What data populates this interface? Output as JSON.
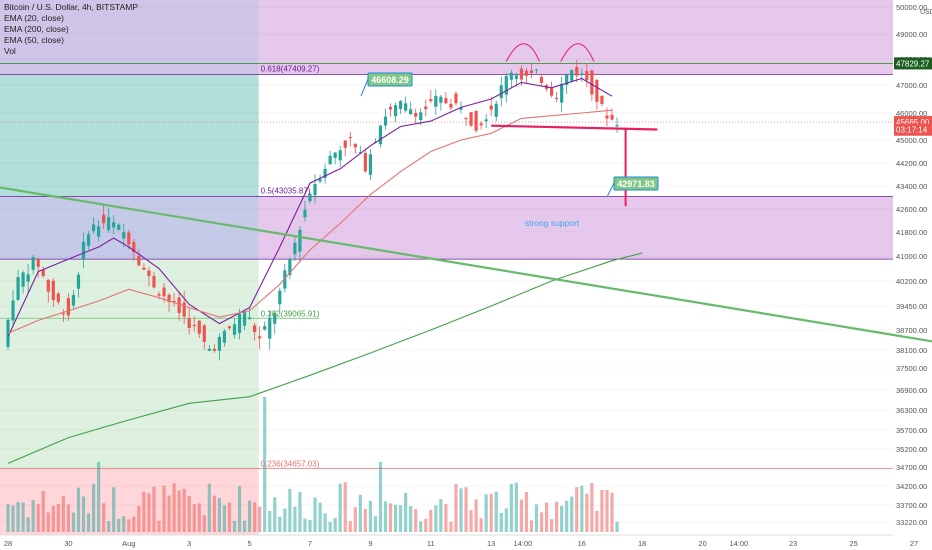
{
  "header": {
    "symbol": "Bitcoin / U.S. Dollar, 4h, BITSTAMP",
    "indicators": [
      "EMA (20, close)",
      "EMA (200, close)",
      "EMA (50, close)",
      "Vol"
    ]
  },
  "price_axis": {
    "currency": "USD",
    "ticks": [
      "50000.00",
      "49000.00",
      "48000.00",
      "47000.00",
      "46000.00",
      "45000.00",
      "44200.00",
      "43400.00",
      "42600.00",
      "41800.00",
      "41000.00",
      "40200.00",
      "39450.00",
      "38700.00",
      "38100.00",
      "37500.00",
      "36900.00",
      "36300.00",
      "35700.00",
      "35200.00",
      "34700.00",
      "34200.00",
      "33700.00",
      "33220.00"
    ],
    "badges": [
      {
        "label": "47829.27",
        "price": 47829.27,
        "color": "#1b5e20"
      },
      {
        "label": "45665.00",
        "price": 45665,
        "color": "#ef5350"
      },
      {
        "label": "03:17:14",
        "price": 45380,
        "color": "#ef5350"
      }
    ]
  },
  "time_axis": {
    "ticks": [
      {
        "label": "28",
        "day": 0
      },
      {
        "label": "30",
        "day": 2
      },
      {
        "label": "Aug",
        "day": 4
      },
      {
        "label": "3",
        "day": 6
      },
      {
        "label": "5",
        "day": 8
      },
      {
        "label": "7",
        "day": 10
      },
      {
        "label": "9",
        "day": 12
      },
      {
        "label": "11",
        "day": 14
      },
      {
        "label": "13",
        "day": 16
      },
      {
        "label": "14:00",
        "day": 17.05
      },
      {
        "label": "16",
        "day": 19
      },
      {
        "label": "18",
        "day": 21
      },
      {
        "label": "20",
        "day": 23
      },
      {
        "label": "14:00",
        "day": 24.2
      },
      {
        "label": "23",
        "day": 26
      },
      {
        "label": "25",
        "day": 28
      },
      {
        "label": "27",
        "day": 30
      }
    ]
  },
  "colors": {
    "up": "#26a69a",
    "down": "#ef5350",
    "ema20": "#7b1fa2",
    "ema50": "#e57373",
    "ema200": "#43a047",
    "trendline": "#66bb6a",
    "neckline": "#e91e63",
    "fib_top": "#e1bee7",
    "fib_mid": "#e1bee7",
    "fib_teal": "#b2dfdb",
    "fib_green": "#c8e6c9",
    "fib_red": "#ffcdd2",
    "fib_purple_left": "#d1c4e9"
  },
  "annotations": {
    "fib_0618": "0.618(47409.27)",
    "fib_05": "0.5(43035.87)",
    "fib_0382": "0.382(39065.91)",
    "fib_0236": "0.236(34657.03)",
    "label_high": "46608.29",
    "label_target": "42971.83",
    "support_text": "strong support"
  },
  "chart_data": {
    "type": "candlestick",
    "title": "Bitcoin / U.S. Dollar, 4h, BITSTAMP",
    "ylim": [
      33000,
      50300
    ],
    "grid": true,
    "legend": "top-left",
    "series": [
      {
        "name": "EMA (20, close)",
        "points": [
          [
            0,
            38500
          ],
          [
            1,
            40500
          ],
          [
            2,
            40900
          ],
          [
            3,
            41300
          ],
          [
            3.5,
            41600
          ],
          [
            4,
            41300
          ],
          [
            5,
            40600
          ],
          [
            6,
            39500
          ],
          [
            7,
            38900
          ],
          [
            8,
            39400
          ],
          [
            9,
            41300
          ],
          [
            10,
            43500
          ],
          [
            11,
            44000
          ],
          [
            12,
            44800
          ],
          [
            13,
            45500
          ],
          [
            14,
            45700
          ],
          [
            15,
            46200
          ],
          [
            16,
            46500
          ],
          [
            17,
            47100
          ],
          [
            18,
            46900
          ],
          [
            19,
            47250
          ],
          [
            20,
            46600
          ]
        ]
      },
      {
        "name": "EMA (50, close)",
        "points": [
          [
            0,
            38600
          ],
          [
            1,
            39000
          ],
          [
            2,
            39300
          ],
          [
            3,
            39600
          ],
          [
            4,
            39950
          ],
          [
            5,
            39700
          ],
          [
            6,
            39400
          ],
          [
            7,
            39100
          ],
          [
            8,
            39300
          ],
          [
            9,
            40100
          ],
          [
            10,
            41200
          ],
          [
            11,
            42100
          ],
          [
            12,
            43100
          ],
          [
            13,
            43900
          ],
          [
            14,
            44600
          ],
          [
            15,
            45000
          ],
          [
            16,
            45250
          ],
          [
            17,
            45800
          ],
          [
            18,
            45900
          ],
          [
            19,
            46000
          ],
          [
            20,
            46100
          ]
        ]
      },
      {
        "name": "EMA (200, close)",
        "points": [
          [
            0,
            34800
          ],
          [
            2,
            35500
          ],
          [
            4,
            36000
          ],
          [
            6,
            36500
          ],
          [
            8,
            36700
          ],
          [
            10,
            37300
          ],
          [
            12,
            38000
          ],
          [
            14,
            38700
          ],
          [
            16,
            39450
          ],
          [
            18,
            40200
          ],
          [
            20,
            40850
          ],
          [
            21,
            41100
          ]
        ]
      }
    ],
    "candles_sample": [
      {
        "day": 4,
        "close": 42400
      },
      {
        "day": 8,
        "close": 37900
      },
      {
        "day": 12,
        "close": 45900
      },
      {
        "day": 17,
        "close": 47600
      },
      {
        "day": 19,
        "close": 47500
      },
      {
        "day": 20,
        "close": 45665
      }
    ],
    "trendlines": [
      {
        "name": "descending trendline",
        "points": [
          [
            -2,
            43650
          ],
          [
            31,
            38300
          ]
        ]
      },
      {
        "name": "neckline",
        "points": [
          [
            16,
            45530
          ],
          [
            21.5,
            45390
          ]
        ]
      }
    ],
    "fib_levels": [
      {
        "level": "0.618",
        "price": 47409.27
      },
      {
        "level": "0.5",
        "price": 43035.87
      },
      {
        "level": "0.382",
        "price": 39065.91
      },
      {
        "level": "0.236",
        "price": 34657.03
      }
    ]
  }
}
